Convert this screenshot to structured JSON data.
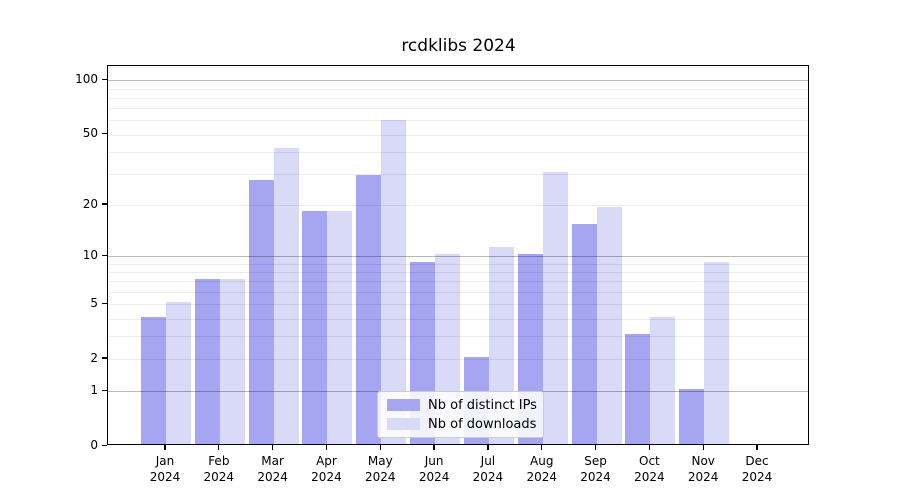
{
  "title": "rcdklibs 2024",
  "chart_data": {
    "type": "bar",
    "title": "rcdklibs 2024",
    "categories": [
      "Jan 2024",
      "Feb 2024",
      "Mar 2024",
      "Apr 2024",
      "May 2024",
      "Jun 2024",
      "Jul 2024",
      "Aug 2024",
      "Sep 2024",
      "Oct 2024",
      "Nov 2024",
      "Dec 2024"
    ],
    "x_tick_labels": [
      [
        "Jan",
        "2024"
      ],
      [
        "Feb",
        "2024"
      ],
      [
        "Mar",
        "2024"
      ],
      [
        "Apr",
        "2024"
      ],
      [
        "May",
        "2024"
      ],
      [
        "Jun",
        "2024"
      ],
      [
        "Jul",
        "2024"
      ],
      [
        "Aug",
        "2024"
      ],
      [
        "Sep",
        "2024"
      ],
      [
        "Oct",
        "2024"
      ],
      [
        "Nov",
        "2024"
      ],
      [
        "Dec",
        "2024"
      ]
    ],
    "series": [
      {
        "name": "Nb of distinct IPs",
        "color": "#a5a5f2",
        "values": [
          4,
          7,
          27,
          18,
          29,
          9,
          2,
          10,
          15,
          3,
          1,
          0
        ]
      },
      {
        "name": "Nb of downloads",
        "color": "#d9d9f8",
        "values": [
          5,
          7,
          41,
          18,
          59,
          10,
          11,
          30,
          19,
          4,
          9,
          0
        ]
      }
    ],
    "yscale": "log1p",
    "ylim": [
      0,
      120
    ],
    "y_tick_values": [
      0,
      1,
      2,
      5,
      10,
      20,
      50,
      100
    ],
    "y_tick_labels": [
      "0",
      "1",
      "2",
      "5",
      "10",
      "20",
      "50",
      "100"
    ],
    "major_grid_values": [
      1,
      10,
      100
    ],
    "minor_grid_values": [
      2,
      3,
      4,
      5,
      6,
      7,
      8,
      9,
      20,
      30,
      40,
      50,
      60,
      70,
      80,
      90
    ],
    "grid": true,
    "legend_position": "lower center"
  },
  "legend": {
    "items": [
      {
        "label": "Nb of distinct IPs",
        "color": "#a5a5f2"
      },
      {
        "label": "Nb of downloads",
        "color": "#d9d9f8"
      }
    ]
  }
}
